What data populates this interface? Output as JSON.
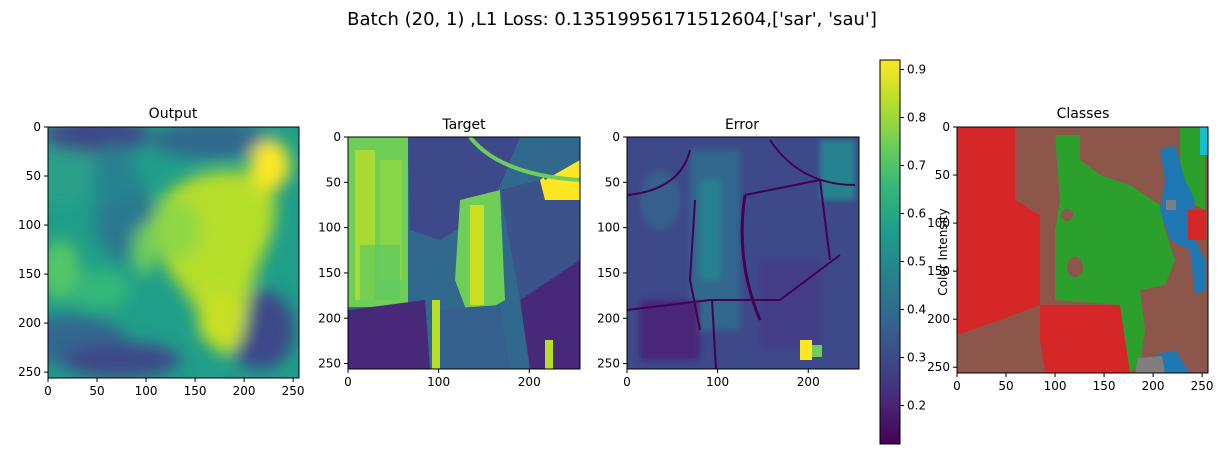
{
  "figure": {
    "suptitle": "Batch (20, 1) ,L1 Loss: 0.13519956171512604,['sar', 'sau']"
  },
  "colors": {
    "viridis": [
      "#440154",
      "#482878",
      "#3e4989",
      "#31688e",
      "#26828e",
      "#1f9e89",
      "#35b779",
      "#6ece58",
      "#b5de2b",
      "#fde725"
    ],
    "class_red": "#d62728",
    "class_brown": "#8c564b",
    "class_green": "#2ca02c",
    "class_blue": "#1f77b4",
    "class_gray": "#7f7f7f",
    "class_cyan": "#17becf"
  },
  "chart_data": [
    {
      "type": "heatmap",
      "title": "Output",
      "xlim": [
        0,
        256
      ],
      "ylim": [
        256,
        0
      ],
      "xticks": [
        0,
        50,
        100,
        150,
        200,
        250
      ],
      "yticks": [
        0,
        50,
        100,
        150,
        200,
        250
      ],
      "cmap": "viridis"
    },
    {
      "type": "heatmap",
      "title": "Target",
      "xlim": [
        0,
        256
      ],
      "ylim": [
        256,
        0
      ],
      "xticks": [
        0,
        100,
        200
      ],
      "yticks": [
        0,
        50,
        100,
        150,
        200,
        250
      ],
      "cmap": "viridis"
    },
    {
      "type": "heatmap",
      "title": "Error",
      "xlim": [
        0,
        256
      ],
      "ylim": [
        256,
        0
      ],
      "xticks": [
        0,
        100,
        200
      ],
      "yticks": [
        0,
        50,
        100,
        150,
        200,
        250
      ],
      "cmap": "viridis"
    },
    {
      "type": "colorbar",
      "label": "Color Intensity",
      "range": [
        0.12,
        0.92
      ],
      "ticks": [
        0.2,
        0.3,
        0.4,
        0.5,
        0.6,
        0.7,
        0.8,
        0.9
      ],
      "tick_labels": [
        "0.2",
        "0.3",
        "0.4",
        "0.5",
        "0.6",
        "0.7",
        "0.8",
        "0.9"
      ],
      "cmap": "viridis"
    },
    {
      "type": "heatmap",
      "title": "Classes",
      "xlim": [
        0,
        256
      ],
      "ylim": [
        256,
        0
      ],
      "xticks": [
        0,
        50,
        100,
        150,
        200,
        250
      ],
      "yticks": [
        0,
        50,
        100,
        150,
        200,
        250
      ],
      "cmap": "tab10 (categorical)"
    }
  ]
}
